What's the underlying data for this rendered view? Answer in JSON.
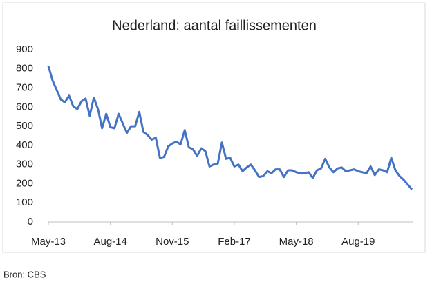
{
  "chart_data": {
    "type": "line",
    "title": "Nederland: aantal faillissementen",
    "categories": [
      "May-13",
      null,
      null,
      null,
      null,
      null,
      null,
      null,
      null,
      null,
      null,
      null,
      null,
      null,
      null,
      "Aug-14",
      null,
      null,
      null,
      null,
      null,
      null,
      null,
      null,
      null,
      null,
      null,
      null,
      null,
      null,
      "Nov-15",
      null,
      null,
      null,
      null,
      null,
      null,
      null,
      null,
      null,
      null,
      null,
      null,
      null,
      null,
      "Feb-17",
      null,
      null,
      null,
      null,
      null,
      null,
      null,
      null,
      null,
      null,
      null,
      null,
      null,
      null,
      "May-18",
      null,
      null,
      null,
      null,
      null,
      null,
      null,
      null,
      null,
      null,
      null,
      null,
      null,
      null,
      "Aug-19",
      null,
      null,
      null,
      null,
      null,
      null,
      null,
      null,
      null,
      null,
      null,
      null,
      null
    ],
    "values": [
      815,
      740,
      690,
      640,
      625,
      660,
      605,
      590,
      630,
      645,
      555,
      650,
      590,
      490,
      565,
      495,
      490,
      565,
      515,
      465,
      500,
      500,
      575,
      470,
      455,
      430,
      440,
      335,
      340,
      395,
      410,
      420,
      405,
      480,
      390,
      380,
      345,
      385,
      370,
      290,
      300,
      305,
      415,
      330,
      335,
      290,
      300,
      265,
      285,
      300,
      270,
      235,
      240,
      265,
      255,
      275,
      275,
      235,
      270,
      270,
      260,
      255,
      255,
      260,
      230,
      270,
      280,
      330,
      285,
      260,
      280,
      285,
      265,
      270,
      275,
      265,
      260,
      255,
      290,
      245,
      275,
      270,
      260,
      335,
      270,
      240,
      220,
      195,
      170
    ],
    "color": "#4472c4",
    "ylim": [
      0,
      900
    ],
    "yticks": [
      0,
      100,
      200,
      300,
      400,
      500,
      600,
      700,
      800,
      900
    ],
    "grid": false
  },
  "source": "Bron: CBS"
}
